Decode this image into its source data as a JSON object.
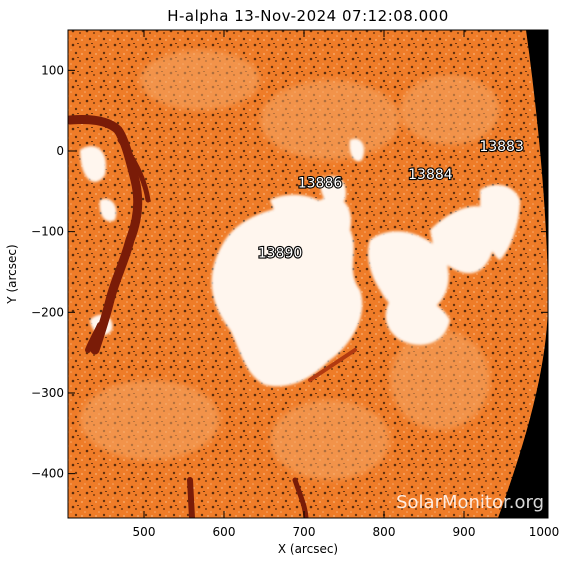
{
  "title": "H-alpha 13-Nov-2024 07:12:08.000",
  "x_axis": {
    "label": "X (arcsec)",
    "ticks": [
      "500",
      "600",
      "700",
      "800",
      "900",
      "1000"
    ],
    "range": [
      405,
      1005
    ]
  },
  "y_axis": {
    "label": "Y (arcsec)",
    "ticks": [
      "100",
      "0",
      "−100",
      "−200",
      "−300",
      "−400"
    ],
    "range": [
      -455,
      150
    ]
  },
  "regions": [
    {
      "id": "13883",
      "label": "13883",
      "x": 947,
      "y": 0
    },
    {
      "id": "13884",
      "label": "13884",
      "x": 858,
      "y": -35
    },
    {
      "id": "13886",
      "label": "13886",
      "x": 720,
      "y": -45
    },
    {
      "id": "13890",
      "label": "13890",
      "x": 670,
      "y": -132
    }
  ],
  "watermark": "SolarMonitor.org",
  "colors": {
    "sun_base": "#ef7c28",
    "sun_light": "#f6a766",
    "plage": "#fff6ee",
    "filament": "#7a1c08",
    "space": "#000000"
  }
}
